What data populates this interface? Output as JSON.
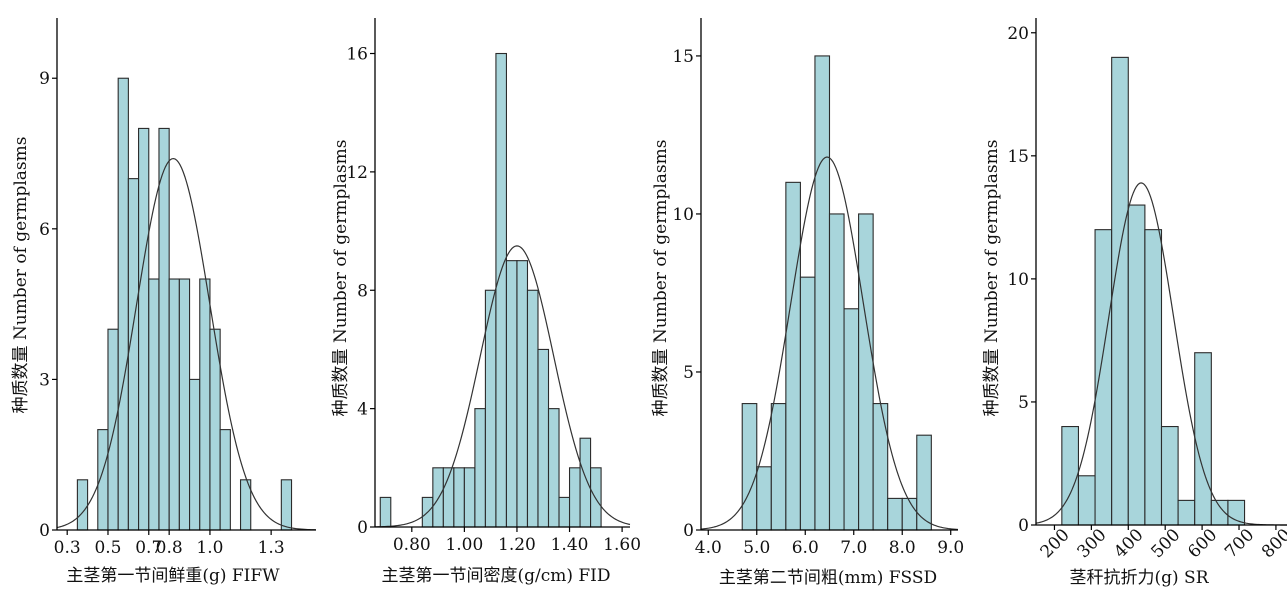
{
  "style": {
    "bar_fill": "#a8d5db",
    "bar_stroke": "#2b2b2b",
    "curve_color": "#333333",
    "axis_color": "#000000"
  },
  "chart_data": [
    {
      "type": "bar",
      "subtype": "histogram_with_normal_curve",
      "xlabel": "主茎第一节间鲜重(g) FIFW",
      "ylabel": "种质数量 Number of germplasms",
      "x_ticks": [
        "0.3",
        "0.5",
        "0.7",
        "0.8",
        "1.0",
        "1.3"
      ],
      "y_ticks": [
        "0",
        "3",
        "6",
        "9"
      ],
      "xlim": [
        0.25,
        1.52
      ],
      "ylim": [
        0,
        10.2
      ],
      "bins": [
        {
          "start": 0.35,
          "end": 0.4,
          "count": 1
        },
        {
          "start": 0.4,
          "end": 0.45,
          "count": 0
        },
        {
          "start": 0.45,
          "end": 0.5,
          "count": 2
        },
        {
          "start": 0.5,
          "end": 0.55,
          "count": 4
        },
        {
          "start": 0.55,
          "end": 0.6,
          "count": 9
        },
        {
          "start": 0.6,
          "end": 0.65,
          "count": 7
        },
        {
          "start": 0.65,
          "end": 0.7,
          "count": 8
        },
        {
          "start": 0.7,
          "end": 0.75,
          "count": 5
        },
        {
          "start": 0.75,
          "end": 0.8,
          "count": 8
        },
        {
          "start": 0.8,
          "end": 0.85,
          "count": 5
        },
        {
          "start": 0.85,
          "end": 0.9,
          "count": 5
        },
        {
          "start": 0.9,
          "end": 0.95,
          "count": 3
        },
        {
          "start": 0.95,
          "end": 1.0,
          "count": 5
        },
        {
          "start": 1.0,
          "end": 1.05,
          "count": 4
        },
        {
          "start": 1.05,
          "end": 1.1,
          "count": 2
        },
        {
          "start": 1.1,
          "end": 1.15,
          "count": 0
        },
        {
          "start": 1.15,
          "end": 1.2,
          "count": 1
        },
        {
          "start": 1.2,
          "end": 1.25,
          "count": 0
        },
        {
          "start": 1.25,
          "end": 1.3,
          "count": 0
        },
        {
          "start": 1.3,
          "end": 1.35,
          "count": 0
        },
        {
          "start": 1.35,
          "end": 1.4,
          "count": 1
        }
      ],
      "normal_curve": {
        "mean": 0.82,
        "sd": 0.18,
        "peak": 7.4
      }
    },
    {
      "type": "bar",
      "subtype": "histogram_with_normal_curve",
      "xlabel": "主茎第一节间密度(g/cm) FID",
      "ylabel": "种质数量 Number of germplasms",
      "x_ticks": [
        "0.80",
        "1.00",
        "1.20",
        "1.40",
        "1.60"
      ],
      "y_ticks": [
        "0",
        "4",
        "8",
        "12",
        "16"
      ],
      "xlim": [
        0.66,
        1.63
      ],
      "ylim": [
        0,
        17.2
      ],
      "bins": [
        {
          "start": 0.68,
          "end": 0.72,
          "count": 1
        },
        {
          "start": 0.72,
          "end": 0.76,
          "count": 0
        },
        {
          "start": 0.76,
          "end": 0.8,
          "count": 0
        },
        {
          "start": 0.8,
          "end": 0.84,
          "count": 0
        },
        {
          "start": 0.84,
          "end": 0.88,
          "count": 1
        },
        {
          "start": 0.88,
          "end": 0.92,
          "count": 2
        },
        {
          "start": 0.92,
          "end": 0.96,
          "count": 2
        },
        {
          "start": 0.96,
          "end": 1.0,
          "count": 2
        },
        {
          "start": 1.0,
          "end": 1.04,
          "count": 2
        },
        {
          "start": 1.04,
          "end": 1.08,
          "count": 4
        },
        {
          "start": 1.08,
          "end": 1.12,
          "count": 8
        },
        {
          "start": 1.12,
          "end": 1.16,
          "count": 16
        },
        {
          "start": 1.16,
          "end": 1.2,
          "count": 9
        },
        {
          "start": 1.2,
          "end": 1.24,
          "count": 9
        },
        {
          "start": 1.24,
          "end": 1.28,
          "count": 8
        },
        {
          "start": 1.28,
          "end": 1.32,
          "count": 6
        },
        {
          "start": 1.32,
          "end": 1.36,
          "count": 4
        },
        {
          "start": 1.36,
          "end": 1.4,
          "count": 1
        },
        {
          "start": 1.4,
          "end": 1.44,
          "count": 2
        },
        {
          "start": 1.44,
          "end": 1.48,
          "count": 3
        },
        {
          "start": 1.48,
          "end": 1.52,
          "count": 2
        }
      ],
      "normal_curve": {
        "mean": 1.2,
        "sd": 0.14,
        "peak": 9.5
      }
    },
    {
      "type": "bar",
      "subtype": "histogram_with_normal_curve",
      "xlabel": "主茎第二节间粗(mm) FSSD",
      "ylabel": "种质数量 Number of germplasms",
      "x_ticks": [
        "4.0",
        "5.0",
        "6.0",
        "7.0",
        "8.0",
        "9.0"
      ],
      "y_ticks": [
        "0",
        "5",
        "10",
        "15"
      ],
      "xlim": [
        3.85,
        9.15
      ],
      "ylim": [
        0,
        16.2
      ],
      "bins": [
        {
          "start": 4.7,
          "end": 5.0,
          "count": 4
        },
        {
          "start": 5.0,
          "end": 5.3,
          "count": 2
        },
        {
          "start": 5.3,
          "end": 5.6,
          "count": 4
        },
        {
          "start": 5.6,
          "end": 5.9,
          "count": 11
        },
        {
          "start": 5.9,
          "end": 6.2,
          "count": 8
        },
        {
          "start": 6.2,
          "end": 6.5,
          "count": 15
        },
        {
          "start": 6.5,
          "end": 6.8,
          "count": 10
        },
        {
          "start": 6.8,
          "end": 7.1,
          "count": 7
        },
        {
          "start": 7.1,
          "end": 7.4,
          "count": 10
        },
        {
          "start": 7.4,
          "end": 7.7,
          "count": 4
        },
        {
          "start": 7.7,
          "end": 8.0,
          "count": 1
        },
        {
          "start": 8.0,
          "end": 8.3,
          "count": 1
        },
        {
          "start": 8.3,
          "end": 8.6,
          "count": 3
        }
      ],
      "normal_curve": {
        "mean": 6.45,
        "sd": 0.75,
        "peak": 11.8
      }
    },
    {
      "type": "bar",
      "subtype": "histogram_with_normal_curve",
      "xlabel": "茎秆抗折力(g) SR",
      "ylabel": "种质数量 Number of germplasms",
      "x_ticks": [
        "200",
        "300",
        "400",
        "500",
        "600",
        "700",
        "800"
      ],
      "y_ticks": [
        "0",
        "5",
        "10",
        "15",
        "20"
      ],
      "xlim": [
        150,
        830
      ],
      "ylim": [
        0,
        20.6
      ],
      "bins": [
        {
          "start": 220,
          "end": 265,
          "count": 4
        },
        {
          "start": 265,
          "end": 310,
          "count": 2
        },
        {
          "start": 310,
          "end": 355,
          "count": 12
        },
        {
          "start": 355,
          "end": 400,
          "count": 19
        },
        {
          "start": 400,
          "end": 445,
          "count": 13
        },
        {
          "start": 445,
          "end": 490,
          "count": 12
        },
        {
          "start": 490,
          "end": 535,
          "count": 4
        },
        {
          "start": 535,
          "end": 580,
          "count": 1
        },
        {
          "start": 580,
          "end": 625,
          "count": 7
        },
        {
          "start": 625,
          "end": 670,
          "count": 1
        },
        {
          "start": 670,
          "end": 715,
          "count": 1
        }
      ],
      "normal_curve": {
        "mean": 435,
        "sd": 88,
        "peak": 13.9
      }
    }
  ]
}
